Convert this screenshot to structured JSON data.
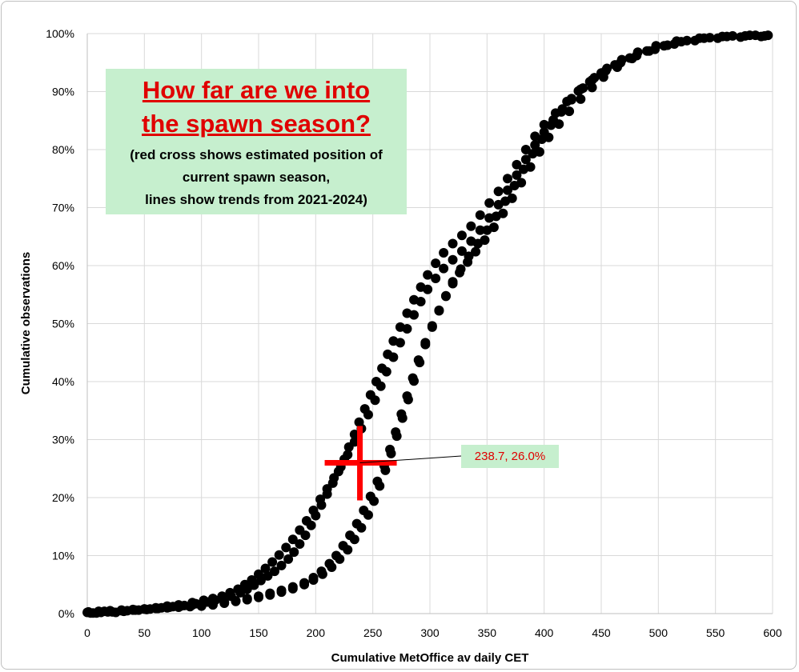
{
  "chart_data": {
    "type": "scatter",
    "title": "How far are we into the spawn season?",
    "subtitle": [
      "(red cross shows estimated position of",
      "current spawn season,",
      "lines show trends from 2021-2024)"
    ],
    "xlabel": "Cumulative MetOffice av daily CET",
    "ylabel": "Cumulative observations",
    "xlim": [
      0,
      600
    ],
    "ylim": [
      0,
      100
    ],
    "x_ticks": [
      "0",
      "50",
      "100",
      "150",
      "200",
      "250",
      "300",
      "350",
      "400",
      "450",
      "500",
      "550",
      "600"
    ],
    "y_ticks": [
      "0%",
      "10%",
      "20%",
      "30%",
      "40%",
      "50%",
      "60%",
      "70%",
      "80%",
      "90%",
      "100%"
    ],
    "grid": true,
    "marker_color": "#000000",
    "series": [
      {
        "values": [
          [
            0,
            0.2
          ],
          [
            8,
            0.1
          ],
          [
            15,
            0.4
          ],
          [
            25,
            0.2
          ],
          [
            35,
            0.5
          ],
          [
            45,
            0.6
          ],
          [
            55,
            0.8
          ],
          [
            65,
            1.0
          ],
          [
            75,
            1.2
          ],
          [
            85,
            1.4
          ],
          [
            95,
            1.7
          ],
          [
            105,
            2.0
          ],
          [
            112,
            2.3
          ],
          [
            118,
            2.6
          ],
          [
            126,
            3.0
          ],
          [
            134,
            3.6
          ],
          [
            140,
            4.2
          ],
          [
            146,
            4.9
          ],
          [
            152,
            5.7
          ],
          [
            158,
            6.5
          ],
          [
            164,
            7.3
          ],
          [
            170,
            8.3
          ],
          [
            176,
            9.4
          ],
          [
            181,
            10.6
          ],
          [
            186,
            12.0
          ],
          [
            191,
            13.5
          ],
          [
            196,
            15.2
          ],
          [
            200,
            16.9
          ],
          [
            205,
            18.7
          ],
          [
            210,
            20.6
          ],
          [
            215,
            22.5
          ],
          [
            220,
            24.5
          ],
          [
            225,
            26.6
          ],
          [
            229,
            28.7
          ],
          [
            234,
            30.9
          ],
          [
            238,
            33.0
          ],
          [
            243,
            35.3
          ],
          [
            248,
            37.7
          ],
          [
            253,
            40.0
          ],
          [
            258,
            42.3
          ],
          [
            263,
            44.7
          ],
          [
            268,
            47.0
          ],
          [
            274,
            49.4
          ],
          [
            280,
            51.8
          ],
          [
            286,
            54.1
          ],
          [
            292,
            56.3
          ],
          [
            298,
            58.4
          ],
          [
            305,
            60.4
          ],
          [
            312,
            62.2
          ],
          [
            320,
            63.8
          ],
          [
            328,
            65.2
          ],
          [
            336,
            66.8
          ],
          [
            344,
            68.7
          ],
          [
            352,
            70.8
          ],
          [
            360,
            72.8
          ],
          [
            368,
            75.0
          ],
          [
            376,
            77.4
          ],
          [
            384,
            80.0
          ],
          [
            392,
            82.3
          ],
          [
            400,
            84.3
          ],
          [
            410,
            86.3
          ],
          [
            420,
            88.3
          ],
          [
            430,
            90.1
          ],
          [
            440,
            91.7
          ],
          [
            450,
            93.2
          ],
          [
            462,
            94.6
          ],
          [
            475,
            95.8
          ],
          [
            490,
            97.0
          ],
          [
            505,
            97.9
          ],
          [
            520,
            98.6
          ],
          [
            540,
            99.2
          ],
          [
            560,
            99.5
          ],
          [
            580,
            99.7
          ],
          [
            596,
            99.7
          ]
        ]
      },
      {
        "values": [
          [
            3,
            0.1
          ],
          [
            12,
            0.2
          ],
          [
            22,
            0.3
          ],
          [
            32,
            0.4
          ],
          [
            42,
            0.6
          ],
          [
            52,
            0.7
          ],
          [
            62,
            0.9
          ],
          [
            72,
            1.1
          ],
          [
            82,
            1.3
          ],
          [
            92,
            1.5
          ],
          [
            100,
            1.6
          ],
          [
            110,
            1.8
          ],
          [
            120,
            2.0
          ],
          [
            130,
            2.2
          ],
          [
            140,
            2.6
          ],
          [
            150,
            3.0
          ],
          [
            160,
            3.5
          ],
          [
            170,
            4.0
          ],
          [
            180,
            4.6
          ],
          [
            190,
            5.3
          ],
          [
            198,
            6.2
          ],
          [
            205,
            7.3
          ],
          [
            212,
            8.6
          ],
          [
            218,
            10.0
          ],
          [
            224,
            11.7
          ],
          [
            230,
            13.5
          ],
          [
            236,
            15.5
          ],
          [
            242,
            17.8
          ],
          [
            248,
            20.2
          ],
          [
            254,
            22.8
          ],
          [
            260,
            25.5
          ],
          [
            265,
            28.3
          ],
          [
            270,
            31.3
          ],
          [
            275,
            34.4
          ],
          [
            280,
            37.5
          ],
          [
            285,
            40.6
          ],
          [
            290,
            43.7
          ],
          [
            296,
            46.7
          ],
          [
            302,
            49.6
          ],
          [
            308,
            52.3
          ],
          [
            314,
            54.7
          ],
          [
            320,
            56.9
          ],
          [
            326,
            58.8
          ],
          [
            333,
            60.6
          ],
          [
            340,
            62.4
          ],
          [
            348,
            64.4
          ],
          [
            356,
            66.6
          ],
          [
            364,
            69.0
          ],
          [
            372,
            71.6
          ],
          [
            380,
            74.3
          ],
          [
            388,
            77.0
          ],
          [
            396,
            79.6
          ],
          [
            404,
            82.1
          ],
          [
            413,
            84.4
          ],
          [
            422,
            86.6
          ],
          [
            432,
            88.7
          ],
          [
            442,
            90.7
          ],
          [
            452,
            92.5
          ],
          [
            464,
            94.2
          ],
          [
            477,
            95.7
          ],
          [
            492,
            97.0
          ],
          [
            508,
            98.0
          ],
          [
            525,
            98.8
          ],
          [
            545,
            99.3
          ],
          [
            565,
            99.6
          ],
          [
            585,
            99.7
          ]
        ]
      },
      {
        "values": [
          [
            5,
            0.1
          ],
          [
            18,
            0.3
          ],
          [
            30,
            0.5
          ],
          [
            40,
            0.6
          ],
          [
            50,
            0.8
          ],
          [
            60,
            1.0
          ],
          [
            70,
            1.3
          ],
          [
            80,
            1.5
          ],
          [
            92,
            1.9
          ],
          [
            102,
            2.3
          ],
          [
            110,
            2.6
          ],
          [
            118,
            3.0
          ],
          [
            125,
            3.6
          ],
          [
            132,
            4.2
          ],
          [
            138,
            5.0
          ],
          [
            144,
            5.8
          ],
          [
            150,
            6.8
          ],
          [
            156,
            7.8
          ],
          [
            162,
            8.9
          ],
          [
            168,
            10.1
          ],
          [
            174,
            11.4
          ],
          [
            180,
            12.8
          ],
          [
            186,
            14.4
          ],
          [
            192,
            16.0
          ],
          [
            198,
            17.8
          ],
          [
            204,
            19.7
          ],
          [
            210,
            21.5
          ],
          [
            216,
            23.4
          ],
          [
            222,
            25.3
          ],
          [
            228,
            27.4
          ],
          [
            234,
            29.6
          ],
          [
            240,
            31.9
          ],
          [
            246,
            34.3
          ],
          [
            252,
            36.8
          ],
          [
            257,
            39.2
          ],
          [
            262,
            41.7
          ],
          [
            268,
            44.2
          ],
          [
            274,
            46.7
          ],
          [
            280,
            49.1
          ],
          [
            286,
            51.5
          ],
          [
            292,
            53.8
          ],
          [
            298,
            55.9
          ],
          [
            305,
            57.8
          ],
          [
            312,
            59.5
          ],
          [
            320,
            61.0
          ],
          [
            328,
            62.5
          ],
          [
            336,
            64.2
          ],
          [
            344,
            66.1
          ],
          [
            352,
            68.2
          ],
          [
            360,
            70.5
          ],
          [
            368,
            73.0
          ],
          [
            376,
            75.6
          ],
          [
            384,
            78.3
          ],
          [
            392,
            80.8
          ],
          [
            400,
            83.0
          ],
          [
            408,
            85.1
          ],
          [
            416,
            87.0
          ],
          [
            424,
            88.8
          ],
          [
            432,
            90.4
          ],
          [
            442,
            92.0
          ],
          [
            454,
            93.6
          ],
          [
            467,
            95.0
          ],
          [
            481,
            96.2
          ],
          [
            497,
            97.3
          ],
          [
            514,
            98.2
          ],
          [
            532,
            98.8
          ],
          [
            552,
            99.2
          ],
          [
            572,
            99.4
          ],
          [
            590,
            99.5
          ]
        ]
      },
      {
        "values": [
          [
            1,
            0.3
          ],
          [
            10,
            0.4
          ],
          [
            20,
            0.5
          ],
          [
            30,
            0.6
          ],
          [
            40,
            0.7
          ],
          [
            50,
            0.8
          ],
          [
            60,
            0.9
          ],
          [
            70,
            1.0
          ],
          [
            80,
            1.1
          ],
          [
            90,
            1.2
          ],
          [
            100,
            1.3
          ],
          [
            110,
            1.5
          ],
          [
            120,
            1.8
          ],
          [
            130,
            2.1
          ],
          [
            140,
            2.4
          ],
          [
            150,
            2.8
          ],
          [
            160,
            3.2
          ],
          [
            170,
            3.7
          ],
          [
            180,
            4.3
          ],
          [
            190,
            5.0
          ],
          [
            198,
            5.8
          ],
          [
            206,
            6.8
          ],
          [
            214,
            8.0
          ],
          [
            221,
            9.4
          ],
          [
            228,
            11.0
          ],
          [
            234,
            12.8
          ],
          [
            240,
            14.8
          ],
          [
            246,
            17.0
          ],
          [
            251,
            19.4
          ],
          [
            256,
            22.0
          ],
          [
            261,
            24.7
          ],
          [
            266,
            27.6
          ],
          [
            271,
            30.6
          ],
          [
            276,
            33.7
          ],
          [
            281,
            36.9
          ],
          [
            286,
            40.1
          ],
          [
            291,
            43.3
          ],
          [
            296,
            46.4
          ],
          [
            302,
            49.4
          ],
          [
            308,
            52.2
          ],
          [
            314,
            54.8
          ],
          [
            320,
            57.2
          ],
          [
            327,
            59.4
          ],
          [
            334,
            61.6
          ],
          [
            342,
            63.8
          ],
          [
            350,
            66.1
          ],
          [
            358,
            68.5
          ],
          [
            366,
            71.1
          ],
          [
            374,
            73.8
          ],
          [
            382,
            76.6
          ],
          [
            390,
            79.3
          ],
          [
            398,
            81.8
          ],
          [
            406,
            84.2
          ],
          [
            415,
            86.5
          ],
          [
            424,
            88.6
          ],
          [
            434,
            90.6
          ],
          [
            444,
            92.4
          ],
          [
            455,
            94.0
          ],
          [
            468,
            95.5
          ],
          [
            482,
            96.8
          ],
          [
            498,
            97.9
          ],
          [
            516,
            98.7
          ],
          [
            536,
            99.2
          ],
          [
            556,
            99.5
          ],
          [
            576,
            99.6
          ],
          [
            593,
            99.6
          ]
        ]
      }
    ],
    "current_position": {
      "x": 238.7,
      "y": 26.0,
      "marker_color": "#ff0000",
      "label": "238.7, 26.0%"
    },
    "callout_bg": "#c6efce",
    "title_box_bg": "#c6efce",
    "title_color": "#e00000"
  }
}
